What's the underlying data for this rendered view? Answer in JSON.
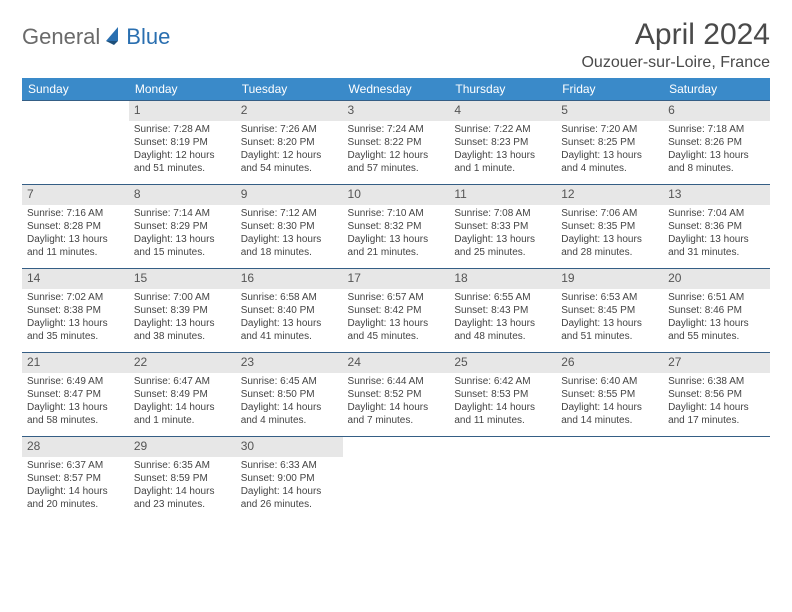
{
  "logo": {
    "text1": "General",
    "text2": "Blue"
  },
  "title": "April 2024",
  "subtitle": "Ouzouer-sur-Loire, France",
  "header_bg": "#3a8ac9",
  "header_fg": "#ffffff",
  "daynum_bg": "#e7e7e7",
  "row_border": "#355e85",
  "day_headers": [
    "Sunday",
    "Monday",
    "Tuesday",
    "Wednesday",
    "Thursday",
    "Friday",
    "Saturday"
  ],
  "weeks": [
    [
      {
        "n": "",
        "sunrise": "",
        "sunset": "",
        "day1": "",
        "day2": ""
      },
      {
        "n": "1",
        "sunrise": "Sunrise: 7:28 AM",
        "sunset": "Sunset: 8:19 PM",
        "day1": "Daylight: 12 hours",
        "day2": "and 51 minutes."
      },
      {
        "n": "2",
        "sunrise": "Sunrise: 7:26 AM",
        "sunset": "Sunset: 8:20 PM",
        "day1": "Daylight: 12 hours",
        "day2": "and 54 minutes."
      },
      {
        "n": "3",
        "sunrise": "Sunrise: 7:24 AM",
        "sunset": "Sunset: 8:22 PM",
        "day1": "Daylight: 12 hours",
        "day2": "and 57 minutes."
      },
      {
        "n": "4",
        "sunrise": "Sunrise: 7:22 AM",
        "sunset": "Sunset: 8:23 PM",
        "day1": "Daylight: 13 hours",
        "day2": "and 1 minute."
      },
      {
        "n": "5",
        "sunrise": "Sunrise: 7:20 AM",
        "sunset": "Sunset: 8:25 PM",
        "day1": "Daylight: 13 hours",
        "day2": "and 4 minutes."
      },
      {
        "n": "6",
        "sunrise": "Sunrise: 7:18 AM",
        "sunset": "Sunset: 8:26 PM",
        "day1": "Daylight: 13 hours",
        "day2": "and 8 minutes."
      }
    ],
    [
      {
        "n": "7",
        "sunrise": "Sunrise: 7:16 AM",
        "sunset": "Sunset: 8:28 PM",
        "day1": "Daylight: 13 hours",
        "day2": "and 11 minutes."
      },
      {
        "n": "8",
        "sunrise": "Sunrise: 7:14 AM",
        "sunset": "Sunset: 8:29 PM",
        "day1": "Daylight: 13 hours",
        "day2": "and 15 minutes."
      },
      {
        "n": "9",
        "sunrise": "Sunrise: 7:12 AM",
        "sunset": "Sunset: 8:30 PM",
        "day1": "Daylight: 13 hours",
        "day2": "and 18 minutes."
      },
      {
        "n": "10",
        "sunrise": "Sunrise: 7:10 AM",
        "sunset": "Sunset: 8:32 PM",
        "day1": "Daylight: 13 hours",
        "day2": "and 21 minutes."
      },
      {
        "n": "11",
        "sunrise": "Sunrise: 7:08 AM",
        "sunset": "Sunset: 8:33 PM",
        "day1": "Daylight: 13 hours",
        "day2": "and 25 minutes."
      },
      {
        "n": "12",
        "sunrise": "Sunrise: 7:06 AM",
        "sunset": "Sunset: 8:35 PM",
        "day1": "Daylight: 13 hours",
        "day2": "and 28 minutes."
      },
      {
        "n": "13",
        "sunrise": "Sunrise: 7:04 AM",
        "sunset": "Sunset: 8:36 PM",
        "day1": "Daylight: 13 hours",
        "day2": "and 31 minutes."
      }
    ],
    [
      {
        "n": "14",
        "sunrise": "Sunrise: 7:02 AM",
        "sunset": "Sunset: 8:38 PM",
        "day1": "Daylight: 13 hours",
        "day2": "and 35 minutes."
      },
      {
        "n": "15",
        "sunrise": "Sunrise: 7:00 AM",
        "sunset": "Sunset: 8:39 PM",
        "day1": "Daylight: 13 hours",
        "day2": "and 38 minutes."
      },
      {
        "n": "16",
        "sunrise": "Sunrise: 6:58 AM",
        "sunset": "Sunset: 8:40 PM",
        "day1": "Daylight: 13 hours",
        "day2": "and 41 minutes."
      },
      {
        "n": "17",
        "sunrise": "Sunrise: 6:57 AM",
        "sunset": "Sunset: 8:42 PM",
        "day1": "Daylight: 13 hours",
        "day2": "and 45 minutes."
      },
      {
        "n": "18",
        "sunrise": "Sunrise: 6:55 AM",
        "sunset": "Sunset: 8:43 PM",
        "day1": "Daylight: 13 hours",
        "day2": "and 48 minutes."
      },
      {
        "n": "19",
        "sunrise": "Sunrise: 6:53 AM",
        "sunset": "Sunset: 8:45 PM",
        "day1": "Daylight: 13 hours",
        "day2": "and 51 minutes."
      },
      {
        "n": "20",
        "sunrise": "Sunrise: 6:51 AM",
        "sunset": "Sunset: 8:46 PM",
        "day1": "Daylight: 13 hours",
        "day2": "and 55 minutes."
      }
    ],
    [
      {
        "n": "21",
        "sunrise": "Sunrise: 6:49 AM",
        "sunset": "Sunset: 8:47 PM",
        "day1": "Daylight: 13 hours",
        "day2": "and 58 minutes."
      },
      {
        "n": "22",
        "sunrise": "Sunrise: 6:47 AM",
        "sunset": "Sunset: 8:49 PM",
        "day1": "Daylight: 14 hours",
        "day2": "and 1 minute."
      },
      {
        "n": "23",
        "sunrise": "Sunrise: 6:45 AM",
        "sunset": "Sunset: 8:50 PM",
        "day1": "Daylight: 14 hours",
        "day2": "and 4 minutes."
      },
      {
        "n": "24",
        "sunrise": "Sunrise: 6:44 AM",
        "sunset": "Sunset: 8:52 PM",
        "day1": "Daylight: 14 hours",
        "day2": "and 7 minutes."
      },
      {
        "n": "25",
        "sunrise": "Sunrise: 6:42 AM",
        "sunset": "Sunset: 8:53 PM",
        "day1": "Daylight: 14 hours",
        "day2": "and 11 minutes."
      },
      {
        "n": "26",
        "sunrise": "Sunrise: 6:40 AM",
        "sunset": "Sunset: 8:55 PM",
        "day1": "Daylight: 14 hours",
        "day2": "and 14 minutes."
      },
      {
        "n": "27",
        "sunrise": "Sunrise: 6:38 AM",
        "sunset": "Sunset: 8:56 PM",
        "day1": "Daylight: 14 hours",
        "day2": "and 17 minutes."
      }
    ],
    [
      {
        "n": "28",
        "sunrise": "Sunrise: 6:37 AM",
        "sunset": "Sunset: 8:57 PM",
        "day1": "Daylight: 14 hours",
        "day2": "and 20 minutes."
      },
      {
        "n": "29",
        "sunrise": "Sunrise: 6:35 AM",
        "sunset": "Sunset: 8:59 PM",
        "day1": "Daylight: 14 hours",
        "day2": "and 23 minutes."
      },
      {
        "n": "30",
        "sunrise": "Sunrise: 6:33 AM",
        "sunset": "Sunset: 9:00 PM",
        "day1": "Daylight: 14 hours",
        "day2": "and 26 minutes."
      },
      {
        "n": "",
        "sunrise": "",
        "sunset": "",
        "day1": "",
        "day2": ""
      },
      {
        "n": "",
        "sunrise": "",
        "sunset": "",
        "day1": "",
        "day2": ""
      },
      {
        "n": "",
        "sunrise": "",
        "sunset": "",
        "day1": "",
        "day2": ""
      },
      {
        "n": "",
        "sunrise": "",
        "sunset": "",
        "day1": "",
        "day2": ""
      }
    ]
  ]
}
